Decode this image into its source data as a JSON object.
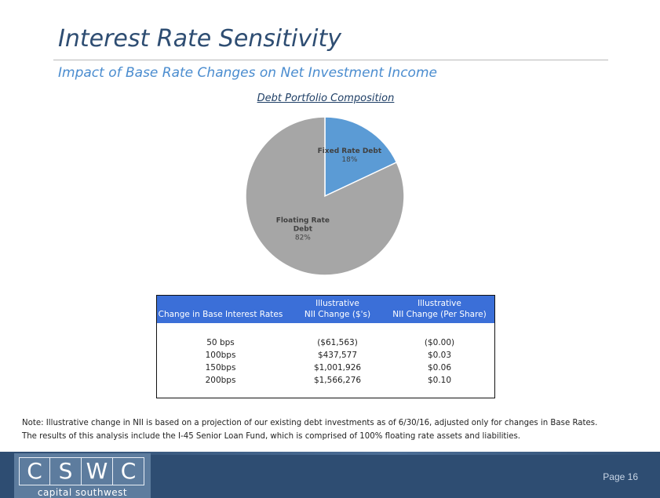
{
  "header": {
    "title": "Interest Rate Sensitivity",
    "subtitle": "Impact of Base Rate Changes on Net Investment Income"
  },
  "chart_data": {
    "type": "pie",
    "title": "Debt Portfolio Composition",
    "slices": [
      {
        "label": "Fixed Rate Debt",
        "label_lines": [
          "Fixed Rate Debt"
        ],
        "value": 18,
        "percent_label": "18%",
        "color": "#5b9bd5"
      },
      {
        "label": "Floating Rate Debt",
        "label_lines": [
          "Floating Rate",
          "Debt"
        ],
        "value": 82,
        "percent_label": "82%",
        "color": "#a6a6a6"
      }
    ],
    "legend": false
  },
  "table": {
    "header_color": "#3b6fd8",
    "headers": [
      {
        "line1": "",
        "line2": "Change in Base Interest Rates"
      },
      {
        "line1": "Illustrative",
        "line2": "NII Change ($'s)"
      },
      {
        "line1": "Illustrative",
        "line2": "NII Change (Per Share)"
      }
    ],
    "rows": [
      [
        "50 bps",
        "($61,563)",
        "($0.00)"
      ],
      [
        "100bps",
        "$437,577",
        "$0.03"
      ],
      [
        "150bps",
        "$1,001,926",
        "$0.06"
      ],
      [
        "200bps",
        "$1,566,276",
        "$0.10"
      ]
    ]
  },
  "note": {
    "line1": "Note:  Illustrative change in NII is based on a projection of our existing debt investments as of 6/30/16, adjusted only for changes in Base Rates.",
    "line2": "The results of this analysis include the I-45 Senior Loan Fund, which is comprised of 100% floating rate assets and liabilities."
  },
  "footer": {
    "logo_letters": [
      "C",
      "S",
      "W",
      "C"
    ],
    "logo_tagline": "capital southwest",
    "page_label": "Page 16",
    "background_color": "#2e4d72"
  }
}
